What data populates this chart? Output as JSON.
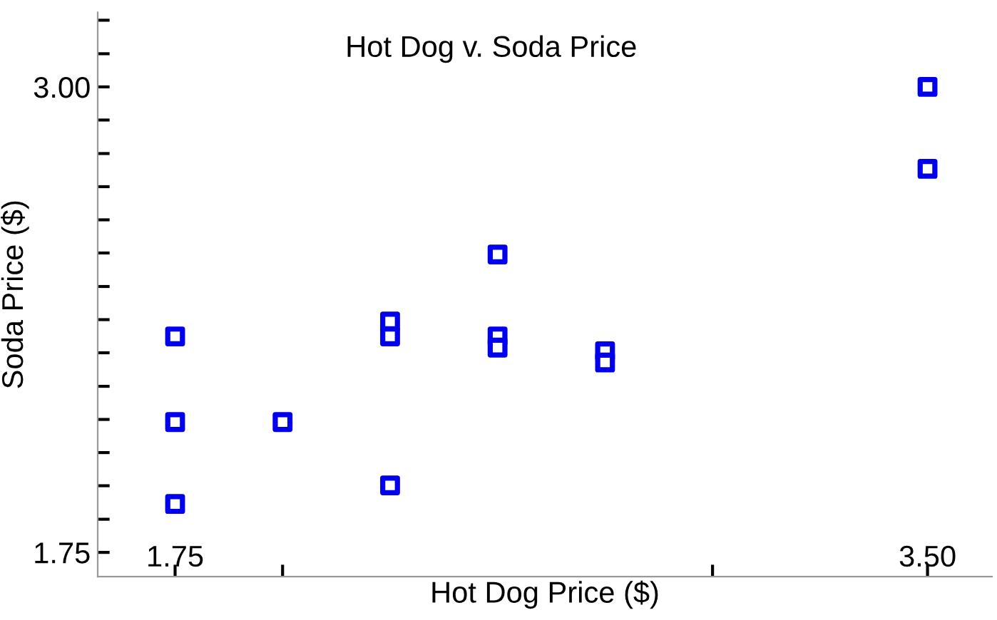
{
  "chart_data": {
    "type": "scatter",
    "title": "Hot Dog v. Soda Price",
    "xlabel": "Hot Dog Price ($)",
    "ylabel": "Soda Price ($)",
    "x": [
      1.75,
      1.75,
      1.75,
      2.0,
      2.25,
      2.25,
      2.25,
      2.5,
      2.5,
      2.5,
      2.75,
      2.75,
      3.5,
      3.5
    ],
    "series": [
      {
        "color": "#0000ee",
        "values": [
          2.33,
          2.1,
          1.88,
          2.1,
          2.37,
          2.33,
          1.93,
          2.55,
          2.33,
          2.3,
          2.29,
          2.26,
          3.0,
          2.78
        ]
      }
    ],
    "marker": "square",
    "grid": false,
    "legend": false,
    "xlim": [
      1.57,
      3.65
    ],
    "ylim": [
      1.685,
      3.2
    ],
    "xticks": [
      {
        "value": 1.75,
        "label": "1.75"
      },
      {
        "value": 2.0,
        "label": null
      },
      {
        "value": 3.0,
        "label": null
      },
      {
        "value": 3.5,
        "label": "3.50"
      }
    ],
    "yticks": [
      {
        "value": 1.75,
        "label": "1.75"
      },
      {
        "value": 1.839,
        "label": null
      },
      {
        "value": 1.929,
        "label": null
      },
      {
        "value": 2.018,
        "label": null
      },
      {
        "value": 2.107,
        "label": null
      },
      {
        "value": 2.196,
        "label": null
      },
      {
        "value": 2.286,
        "label": null
      },
      {
        "value": 2.375,
        "label": null
      },
      {
        "value": 2.464,
        "label": null
      },
      {
        "value": 2.554,
        "label": null
      },
      {
        "value": 2.643,
        "label": null
      },
      {
        "value": 2.732,
        "label": null
      },
      {
        "value": 2.821,
        "label": null
      },
      {
        "value": 2.911,
        "label": null
      },
      {
        "value": 3.0,
        "label": "3.00"
      },
      {
        "value": 3.089,
        "label": null
      },
      {
        "value": 3.179,
        "label": null
      }
    ]
  }
}
